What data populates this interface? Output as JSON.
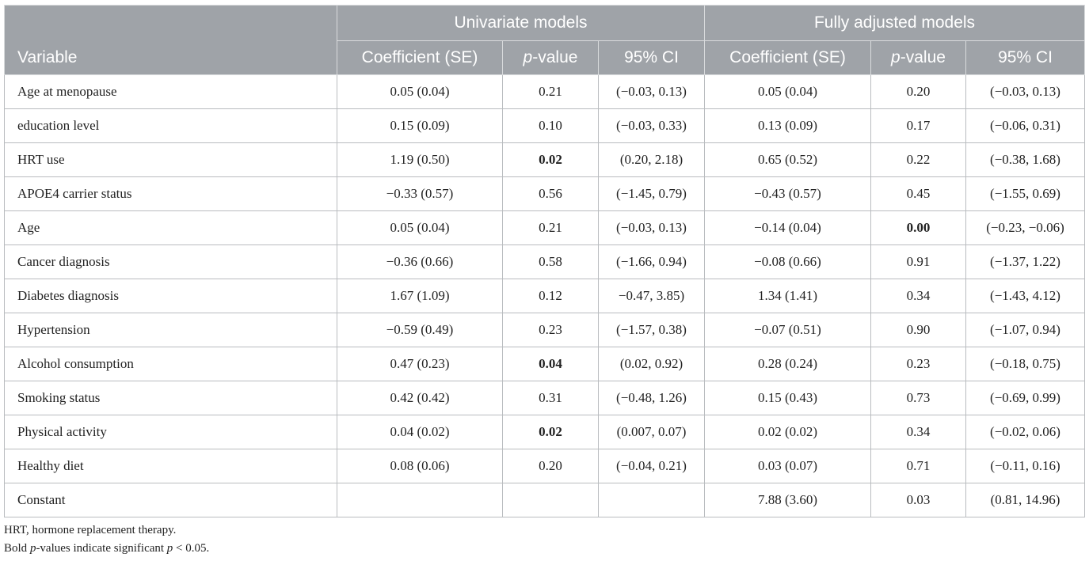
{
  "table": {
    "groups": [
      "Univariate models",
      "Fully adjusted models"
    ],
    "headers": [
      "Variable",
      "Coefficient (SE)",
      "p-value",
      "95% CI",
      "Coefficient (SE)",
      "p-value",
      "95% CI"
    ],
    "rows": [
      {
        "cells": [
          "Age at menopause",
          "0.05 (0.04)",
          "0.21",
          "(−0.03, 0.13)",
          "0.05 (0.04)",
          "0.20",
          "(−0.03, 0.13)"
        ],
        "bold": []
      },
      {
        "cells": [
          "education level",
          "0.15 (0.09)",
          "0.10",
          "(−0.03, 0.33)",
          "0.13 (0.09)",
          "0.17",
          "(−0.06, 0.31)"
        ],
        "bold": []
      },
      {
        "cells": [
          "HRT use",
          "1.19 (0.50)",
          "0.02",
          "(0.20, 2.18)",
          "0.65 (0.52)",
          "0.22",
          "(−0.38, 1.68)"
        ],
        "bold": [
          2
        ]
      },
      {
        "cells": [
          "APOE4 carrier status",
          "−0.33 (0.57)",
          "0.56",
          "(−1.45, 0.79)",
          "−0.43 (0.57)",
          "0.45",
          "(−1.55, 0.69)"
        ],
        "bold": []
      },
      {
        "cells": [
          "Age",
          "0.05 (0.04)",
          "0.21",
          "(−0.03, 0.13)",
          "−0.14 (0.04)",
          "0.00",
          "(−0.23, −0.06)"
        ],
        "bold": [
          5
        ]
      },
      {
        "cells": [
          "Cancer diagnosis",
          "−0.36 (0.66)",
          "0.58",
          "(−1.66, 0.94)",
          "−0.08 (0.66)",
          "0.91",
          "(−1.37, 1.22)"
        ],
        "bold": []
      },
      {
        "cells": [
          "Diabetes diagnosis",
          "1.67 (1.09)",
          "0.12",
          "−0.47, 3.85)",
          "1.34 (1.41)",
          "0.34",
          "(−1.43, 4.12)"
        ],
        "bold": []
      },
      {
        "cells": [
          "Hypertension",
          "−0.59 (0.49)",
          "0.23",
          "(−1.57, 0.38)",
          "−0.07 (0.51)",
          "0.90",
          "(−1.07, 0.94)"
        ],
        "bold": []
      },
      {
        "cells": [
          "Alcohol consumption",
          "0.47 (0.23)",
          "0.04",
          "(0.02, 0.92)",
          "0.28 (0.24)",
          "0.23",
          "(−0.18, 0.75)"
        ],
        "bold": [
          2
        ]
      },
      {
        "cells": [
          "Smoking status",
          "0.42 (0.42)",
          "0.31",
          "(−0.48, 1.26)",
          "0.15 (0.43)",
          "0.73",
          "(−0.69, 0.99)"
        ],
        "bold": []
      },
      {
        "cells": [
          "Physical activity",
          "0.04 (0.02)",
          "0.02",
          "(0.007, 0.07)",
          "0.02 (0.02)",
          "0.34",
          "(−0.02, 0.06)"
        ],
        "bold": [
          2
        ]
      },
      {
        "cells": [
          "Healthy diet",
          "0.08 (0.06)",
          "0.20",
          "(−0.04, 0.21)",
          "0.03 (0.07)",
          "0.71",
          "(−0.11, 0.16)"
        ],
        "bold": []
      },
      {
        "cells": [
          "Constant",
          "",
          "",
          "",
          "7.88 (3.60)",
          "0.03",
          "(0.81, 14.96)"
        ],
        "bold": []
      }
    ]
  },
  "footnotes": {
    "abbrev": "HRT, hormone replacement therapy.",
    "sig_part1": "Bold ",
    "sig_p1": "p",
    "sig_part2": "-values indicate significant ",
    "sig_p2": "p",
    "sig_part3": " < 0.05."
  }
}
